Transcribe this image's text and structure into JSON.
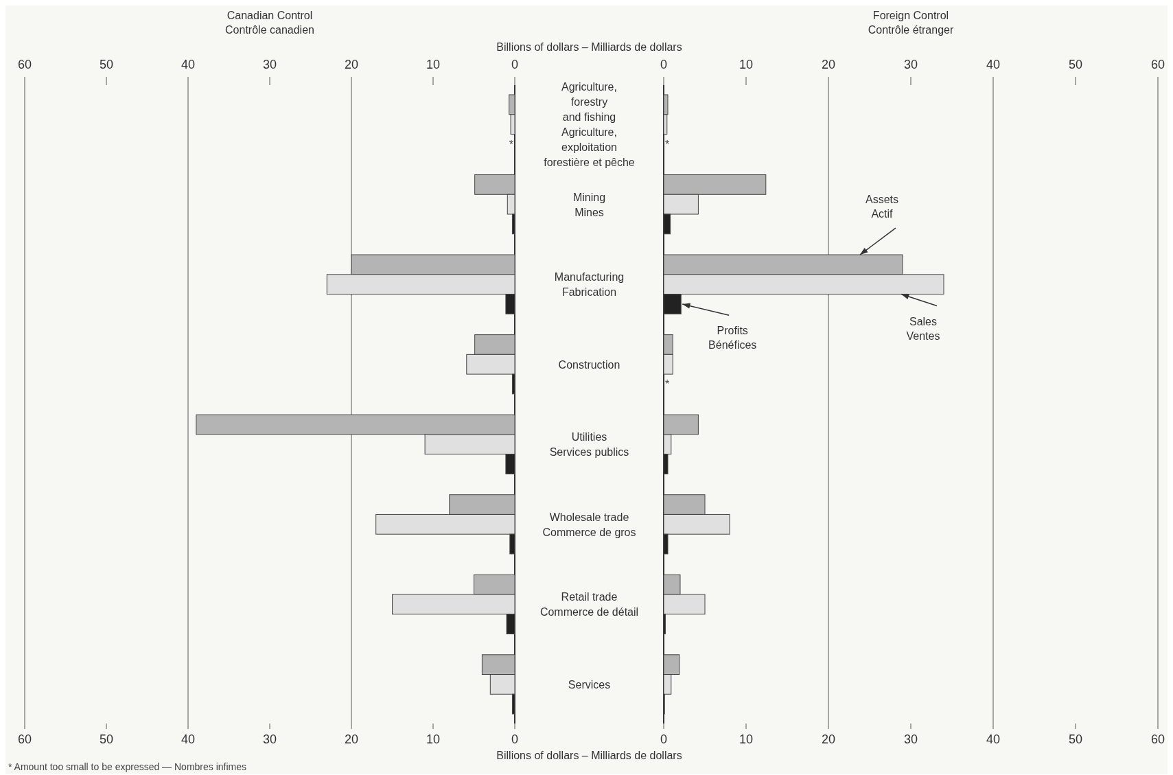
{
  "chart_data": [
    {
      "type": "bar",
      "orientation": "horizontal",
      "title": "Canadian Control\nContrôle canadien",
      "xlabel": "Billions of dollars – Milliards de dollars",
      "x2label": "Billions of dollars – Milliards de dollars",
      "categories": [
        "Agriculture,\nforestry\nand fishing\nAgriculture,\nexploitation\nforestière et pêche",
        "Mining\nMines",
        "Manufacturing\nFabrication",
        "Construction",
        "Utilities\nServices publics",
        "Wholesale trade\nCommerce de gros",
        "Retail trade\nCommerce de détail",
        "Services"
      ],
      "series": [
        {
          "color": "#b4b4b4",
          "values": [
            0.7,
            4.9,
            20,
            4.9,
            39,
            8,
            5,
            4
          ]
        },
        {
          "color": "#e0e0e0",
          "values": [
            0.5,
            0.9,
            23,
            5.9,
            11,
            17,
            15,
            3
          ]
        },
        {
          "color": "#222222",
          "values": [
            null,
            0.3,
            1.1,
            0.3,
            1.1,
            0.6,
            1,
            0.3
          ]
        }
      ],
      "xlim": [
        60,
        0
      ],
      "xticks": [
        0,
        10,
        20,
        30,
        40,
        50,
        60
      ],
      "x2lim": [
        60,
        0
      ],
      "x2ticks": [
        0,
        10,
        20,
        30,
        40,
        50,
        60
      ],
      "grid": "x",
      "annotations": [
        "* Amount too small to be expressed — Nombres infimes",
        {
          "text": "*",
          "y": "Agriculture,\nforestry\nand fishing\nAgriculture,\nexploitation\nforestière et pêche"
        }
      ]
    },
    {
      "type": "bar",
      "orientation": "horizontal",
      "title": "Foreign Control\nContrôle étranger",
      "tick_labels": "x",
      "categories": [
        "Agriculture,\nforestry\nand fishing\nAgriculture,\nexploitation\nforestière et pêche",
        "Mining\nMines",
        "Manufacturing\nFabrication",
        "Construction",
        "Utilities\nServices publics",
        "Wholesale trade\nCommerce de gros",
        "Retail trade\nCommerce de détail",
        "Services"
      ],
      "series": [
        {
          "name": "Assets\nActif",
          "color": "#b4b4b4",
          "values": [
            0.5,
            12.4,
            29,
            1.1,
            4.2,
            5,
            2,
            1.9
          ]
        },
        {
          "name": "Sales\nVentes",
          "color": "#e0e0e0",
          "values": [
            0.4,
            4.2,
            34,
            1.1,
            0.9,
            8,
            5,
            0.9
          ]
        },
        {
          "name": "Profits\nBénéfices",
          "color": "#222222",
          "values": [
            null,
            0.8,
            2.1,
            null,
            0.5,
            0.5,
            0.2,
            0.1
          ]
        }
      ],
      "xlim": [
        0,
        60
      ],
      "xticks": [
        0,
        10,
        20,
        30,
        40,
        50,
        60
      ],
      "x2lim": [
        0,
        60
      ],
      "x2ticks": [
        0,
        10,
        20,
        30,
        40,
        50,
        60
      ],
      "grid": "x",
      "annotations": [
        {
          "text": "*",
          "y": "Agriculture,\nforestry\nand fishing\nAgriculture,\nexploitation\nforestière et pêche"
        },
        {
          "text": "*",
          "y": "Construction"
        }
      ]
    }
  ]
}
